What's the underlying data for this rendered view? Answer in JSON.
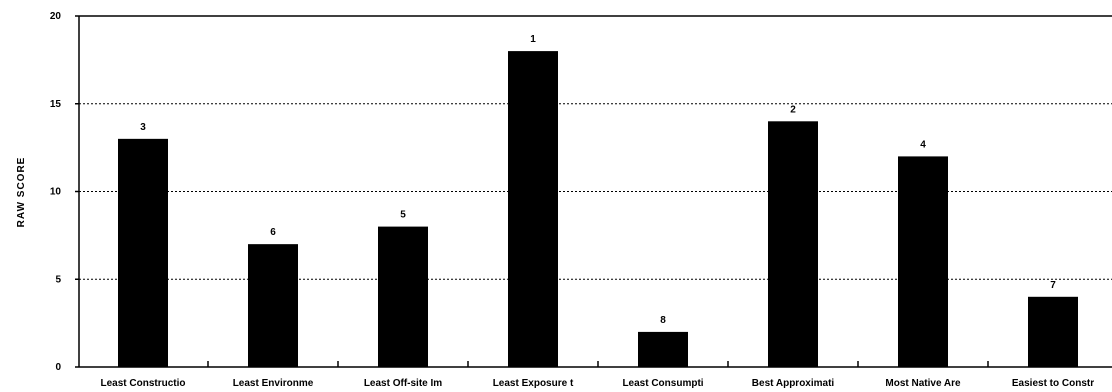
{
  "chart_data": {
    "type": "bar",
    "title": "",
    "xlabel": "",
    "ylabel": "RAW SCORE",
    "ylim": [
      0,
      20
    ],
    "yticks": [
      0,
      5,
      10,
      15,
      20
    ],
    "grid": true,
    "bar_color": "#000000",
    "categories": [
      "Least Constructio",
      "Least Environme",
      "Least Off-site Im",
      "Least Exposure t",
      "Least Consumpti",
      "Best Approximati",
      "Most Native Are",
      "Easiest to Constr"
    ],
    "values": [
      13,
      7,
      8,
      18,
      2,
      14,
      12,
      4
    ],
    "data_labels": [
      "3",
      "6",
      "5",
      "1",
      "8",
      "2",
      "4",
      "7"
    ]
  }
}
